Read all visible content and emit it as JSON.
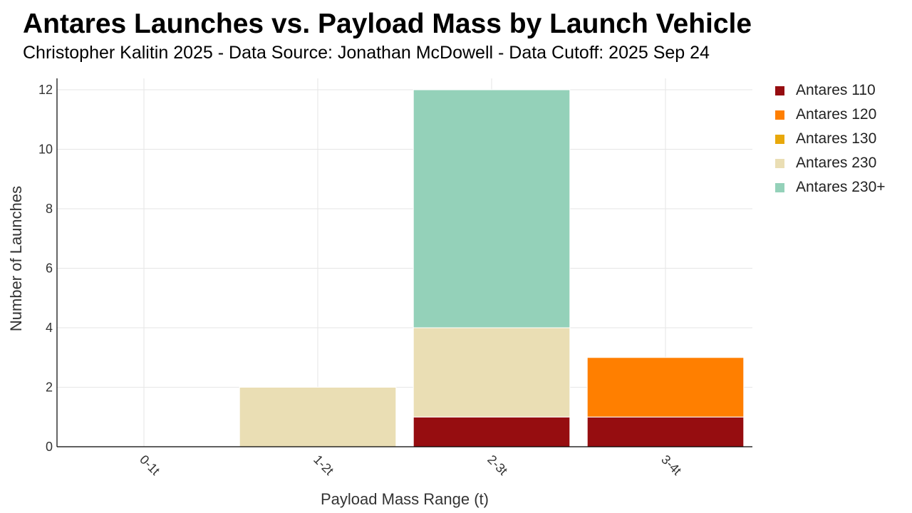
{
  "chart_data": {
    "type": "bar",
    "stacked": true,
    "title": "Antares Launches vs. Payload Mass by Launch Vehicle",
    "subtitle": "Christopher Kalitin 2025 - Data Source: Jonathan McDowell - Data Cutoff: 2025 Sep 24",
    "xlabel": "Payload Mass Range (t)",
    "ylabel": "Number of Launches",
    "categories": [
      "0-1t",
      "1-2t",
      "2-3t",
      "3-4t"
    ],
    "ylim": [
      0,
      12
    ],
    "yticks": [
      0,
      2,
      4,
      6,
      8,
      10,
      12
    ],
    "grid": true,
    "legend_position": "right",
    "series": [
      {
        "name": "Antares 110",
        "color": "#960d10",
        "values": [
          0,
          0,
          1,
          1
        ]
      },
      {
        "name": "Antares 120",
        "color": "#ff7f00",
        "values": [
          0,
          0,
          0,
          2
        ]
      },
      {
        "name": "Antares 130",
        "color": "#e8a80b",
        "values": [
          0,
          0,
          0,
          0
        ]
      },
      {
        "name": "Antares 230",
        "color": "#eadeb4",
        "values": [
          0,
          2,
          3,
          0
        ]
      },
      {
        "name": "Antares 230+",
        "color": "#94d1b9",
        "values": [
          0,
          0,
          8,
          0
        ]
      }
    ]
  }
}
